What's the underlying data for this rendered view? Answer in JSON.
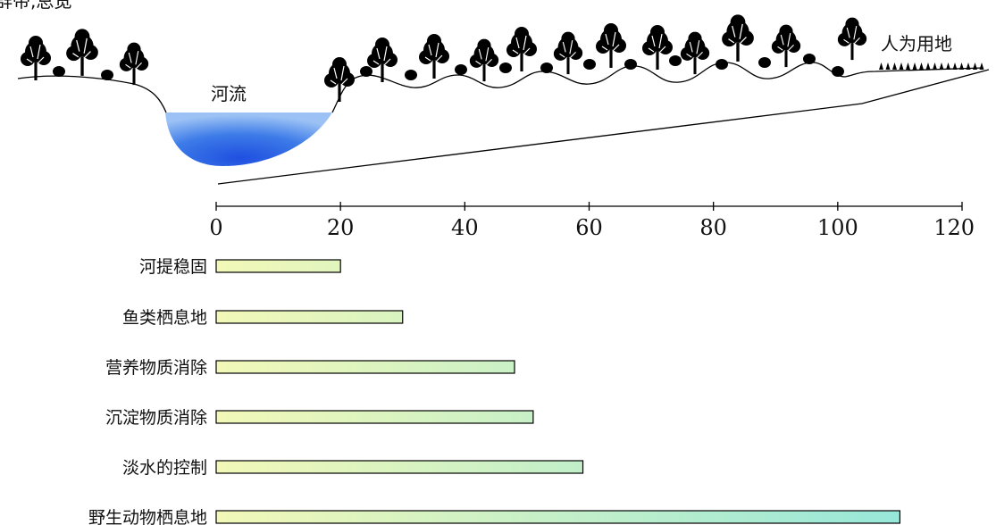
{
  "top_left_fragment": "群带,总宽",
  "labels": {
    "river": "河流",
    "human_land": "人为用地"
  },
  "chart_data": {
    "type": "bar",
    "orientation": "horizontal",
    "title": "",
    "xlabel": "",
    "ylabel": "",
    "xlim": [
      0,
      120
    ],
    "xticks": [
      0,
      20,
      40,
      60,
      80,
      100,
      120
    ],
    "grid": false,
    "categories": [
      "河提稳固",
      "鱼类栖息地",
      "营养物质消除",
      "沉淀物质消除",
      "淡水的控制",
      "野生动物栖息地"
    ],
    "values": [
      20,
      30,
      48,
      51,
      59,
      110
    ],
    "colors": {
      "bar_fill_start": "#f2f8b8",
      "bar_fill_end": "#8fe6dc",
      "water": "#3f74e3",
      "line": "#000000"
    }
  }
}
